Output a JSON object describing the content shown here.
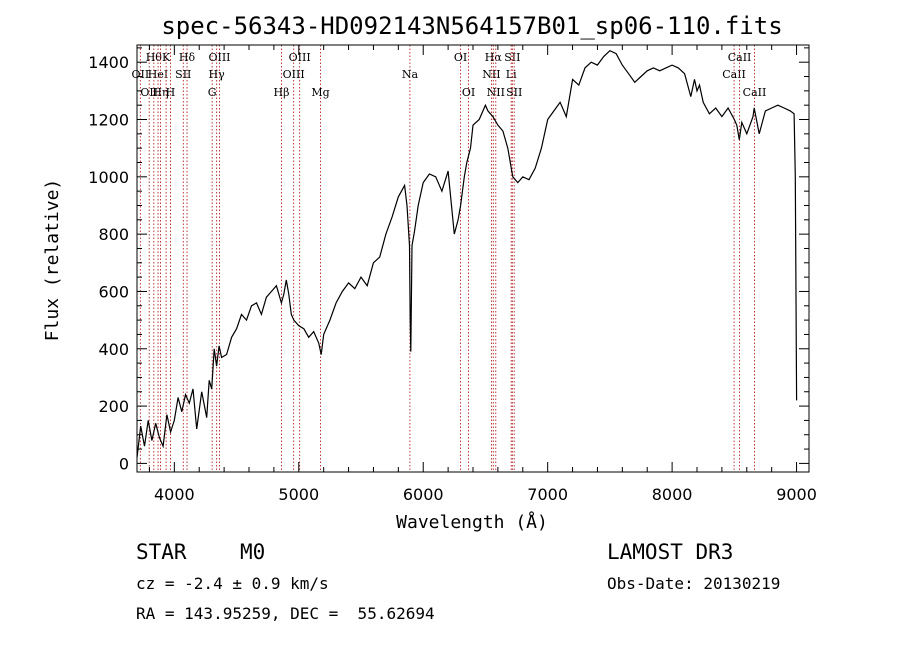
{
  "chart_data": {
    "type": "line",
    "title": "spec-56343-HD092143N564157B01_sp06-110.fits",
    "xlabel": "Wavelength (Å)",
    "ylabel": "Flux (relative)",
    "xlim": [
      3700,
      9100
    ],
    "ylim": [
      -30,
      1460
    ],
    "x_ticks": [
      4000,
      5000,
      6000,
      7000,
      8000,
      9000
    ],
    "y_ticks": [
      0,
      200,
      400,
      600,
      800,
      1000,
      1200,
      1400
    ],
    "series": [
      {
        "name": "flux",
        "x": [
          3700,
          3730,
          3760,
          3790,
          3820,
          3850,
          3880,
          3910,
          3940,
          3970,
          4000,
          4030,
          4060,
          4090,
          4120,
          4150,
          4180,
          4220,
          4260,
          4280,
          4300,
          4320,
          4340,
          4360,
          4380,
          4420,
          4460,
          4500,
          4540,
          4580,
          4620,
          4660,
          4700,
          4740,
          4780,
          4820,
          4860,
          4880,
          4900,
          4920,
          4940,
          4960,
          5000,
          5040,
          5080,
          5120,
          5160,
          5180,
          5200,
          5250,
          5300,
          5350,
          5400,
          5450,
          5500,
          5550,
          5600,
          5650,
          5700,
          5750,
          5800,
          5850,
          5870,
          5890,
          5895,
          5900,
          5910,
          5930,
          5960,
          6000,
          6050,
          6100,
          6150,
          6200,
          6250,
          6280,
          6300,
          6330,
          6350,
          6380,
          6400,
          6450,
          6500,
          6520,
          6560,
          6600,
          6640,
          6680,
          6720,
          6760,
          6800,
          6850,
          6900,
          6950,
          7000,
          7050,
          7100,
          7150,
          7200,
          7250,
          7300,
          7350,
          7400,
          7450,
          7500,
          7550,
          7600,
          7650,
          7700,
          7750,
          7800,
          7850,
          7900,
          7950,
          8000,
          8050,
          8100,
          8150,
          8180,
          8200,
          8220,
          8250,
          8300,
          8350,
          8400,
          8450,
          8500,
          8520,
          8540,
          8560,
          8600,
          8650,
          8660,
          8700,
          8750,
          8800,
          8850,
          8900,
          8950,
          8980,
          8990,
          9000
        ],
        "values": [
          20,
          130,
          60,
          150,
          80,
          140,
          90,
          60,
          170,
          110,
          150,
          230,
          180,
          240,
          210,
          260,
          120,
          250,
          160,
          290,
          260,
          400,
          340,
          410,
          370,
          380,
          440,
          470,
          520,
          500,
          550,
          560,
          520,
          580,
          600,
          620,
          560,
          590,
          640,
          590,
          520,
          500,
          480,
          470,
          440,
          460,
          420,
          380,
          450,
          500,
          560,
          600,
          630,
          610,
          650,
          620,
          700,
          720,
          800,
          860,
          930,
          970,
          900,
          760,
          500,
          390,
          760,
          810,
          900,
          980,
          1010,
          1000,
          950,
          1020,
          800,
          850,
          900,
          1000,
          1050,
          1100,
          1180,
          1200,
          1250,
          1230,
          1210,
          1180,
          1160,
          1100,
          1000,
          980,
          1000,
          990,
          1030,
          1100,
          1200,
          1230,
          1260,
          1210,
          1340,
          1320,
          1380,
          1400,
          1390,
          1420,
          1440,
          1430,
          1390,
          1360,
          1330,
          1350,
          1370,
          1380,
          1370,
          1380,
          1390,
          1380,
          1360,
          1280,
          1340,
          1300,
          1320,
          1260,
          1220,
          1240,
          1210,
          1240,
          1200,
          1180,
          1130,
          1190,
          1150,
          1210,
          1240,
          1150,
          1230,
          1240,
          1250,
          1240,
          1230,
          1220,
          1000,
          220
        ]
      }
    ],
    "lines": [
      {
        "x": 3727,
        "labels": [
          "OII"
        ],
        "row": 2
      },
      {
        "x": 3798,
        "labels": [
          "OII"
        ],
        "row": 3
      },
      {
        "x": 3835,
        "labels": [
          "Hθ"
        ],
        "row": 1
      },
      {
        "x": 3869,
        "labels": [
          "HeI"
        ],
        "row": 2
      },
      {
        "x": 3889,
        "labels": [
          "Hη"
        ],
        "row": 3
      },
      {
        "x": 3934,
        "labels": [
          "K"
        ],
        "row": 1
      },
      {
        "x": 3969,
        "labels": [
          "H"
        ],
        "row": 3
      },
      {
        "x": 4072,
        "labels": [
          "SII"
        ],
        "row": 2
      },
      {
        "x": 4102,
        "labels": [
          "Hδ"
        ],
        "row": 1
      },
      {
        "x": 4304,
        "labels": [
          "G"
        ],
        "row": 3
      },
      {
        "x": 4340,
        "labels": [
          "Hγ"
        ],
        "row": 2
      },
      {
        "x": 4363,
        "labels": [
          "OIII"
        ],
        "row": 1
      },
      {
        "x": 4861,
        "labels": [
          "Hβ"
        ],
        "row": 3
      },
      {
        "x": 4959,
        "labels": [
          "OIII"
        ],
        "row": 2
      },
      {
        "x": 5007,
        "labels": [
          "OIII"
        ],
        "row": 1
      },
      {
        "x": 5175,
        "labels": [
          "Mg"
        ],
        "row": 3
      },
      {
        "x": 5893,
        "labels": [
          "Na"
        ],
        "row": 2
      },
      {
        "x": 6300,
        "labels": [
          "OI"
        ],
        "row": 1
      },
      {
        "x": 6364,
        "labels": [
          "OI"
        ],
        "row": 3
      },
      {
        "x": 6548,
        "labels": [
          "NII"
        ],
        "row": 2
      },
      {
        "x": 6563,
        "labels": [
          "Hα"
        ],
        "row": 1
      },
      {
        "x": 6583,
        "labels": [
          "NII"
        ],
        "row": 3
      },
      {
        "x": 6707,
        "labels": [
          "Li"
        ],
        "row": 2
      },
      {
        "x": 6716,
        "labels": [
          "SII"
        ],
        "row": 1
      },
      {
        "x": 6731,
        "labels": [
          "SII"
        ],
        "row": 3
      },
      {
        "x": 8498,
        "labels": [
          "CaII"
        ],
        "row": 2
      },
      {
        "x": 8542,
        "labels": [
          "CaII"
        ],
        "row": 1
      },
      {
        "x": 8662,
        "labels": [
          "CaII"
        ],
        "row": 3
      }
    ]
  },
  "info": {
    "object_class": "STAR",
    "subclass": "M0",
    "survey": "LAMOST DR3",
    "redshift": "cz = -2.4 ± 0.9 km/s",
    "obs_date": "Obs-Date: 20130219",
    "coords": "RA = 143.95259, DEC =  55.62694"
  },
  "colors": {
    "axis": "#000000",
    "spectrum": "#000000",
    "line_marker": "#b22222"
  }
}
